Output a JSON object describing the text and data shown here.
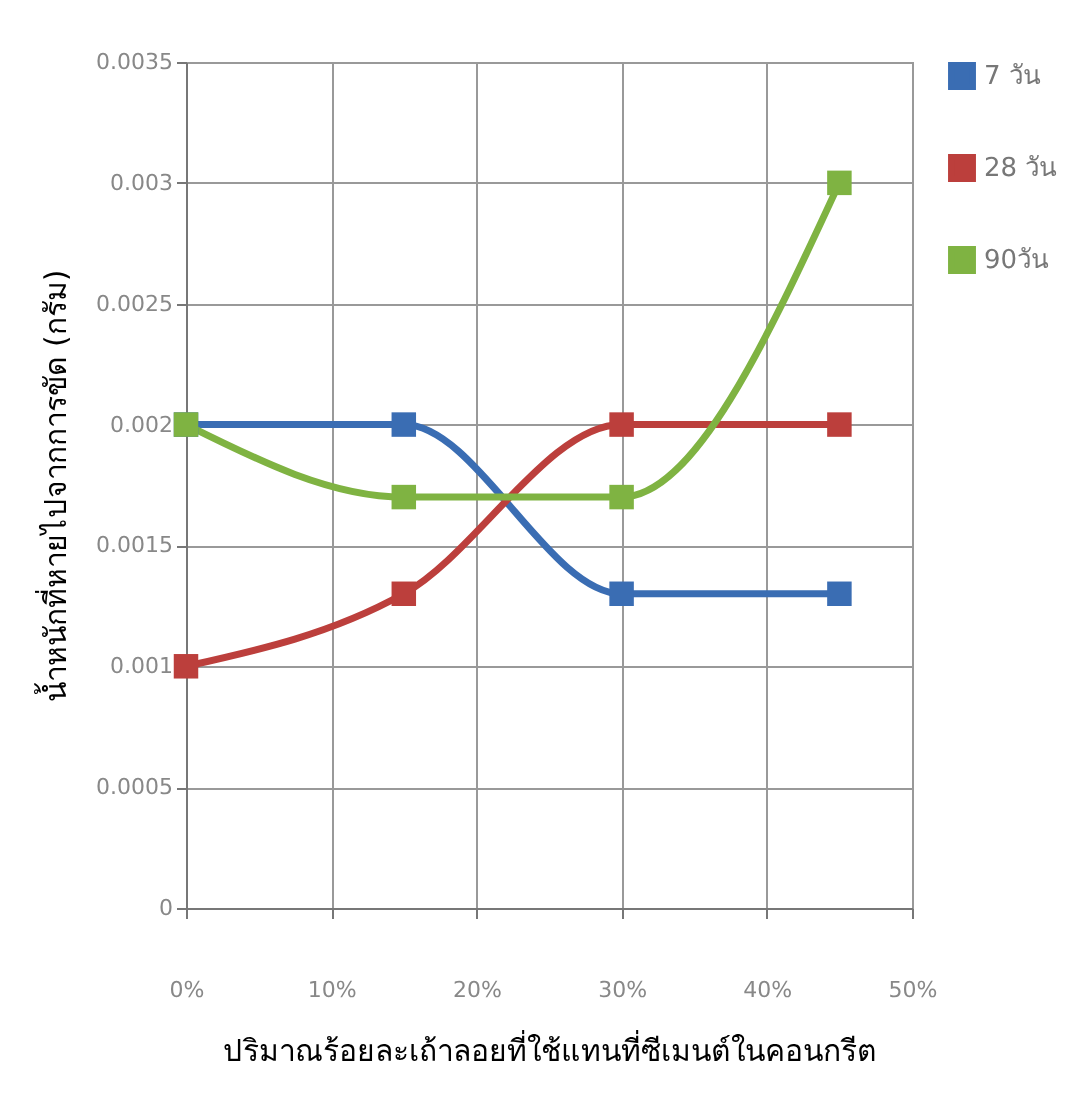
{
  "chart_data": {
    "type": "line",
    "xlabel": "ปริมาณร้อยละเถ้าลอยที่ใช้แทนที่ซีเมนต์ในคอนกรีต",
    "ylabel": "น้ำหนักที่หายไปจากการขัด (กรัม)",
    "x": [
      0,
      15,
      30,
      45
    ],
    "series": [
      {
        "name": "7 วัน",
        "color": "#3a6db3",
        "values": [
          0.002,
          0.002,
          0.0013,
          0.0013
        ]
      },
      {
        "name": "28 วัน",
        "color": "#bc3f3c",
        "values": [
          0.001,
          0.0013,
          0.002,
          0.002
        ]
      },
      {
        "name": "90วัน",
        "color": "#7fb342",
        "values": [
          0.002,
          0.0017,
          0.0017,
          0.003
        ]
      }
    ],
    "xlim": [
      0,
      50
    ],
    "xticks": [
      {
        "value": 0,
        "label": "0%"
      },
      {
        "value": 10,
        "label": "10%"
      },
      {
        "value": 20,
        "label": "20%"
      },
      {
        "value": 30,
        "label": "30%"
      },
      {
        "value": 40,
        "label": "40%"
      },
      {
        "value": 50,
        "label": "50%"
      }
    ],
    "ylim": [
      0,
      0.0035
    ],
    "yticks": [
      0,
      0.0005,
      0.001,
      0.0015,
      0.002,
      0.0025,
      0.003,
      0.0035
    ],
    "grid": true,
    "legend": "right",
    "marker": "square",
    "line_style": "solid"
  }
}
